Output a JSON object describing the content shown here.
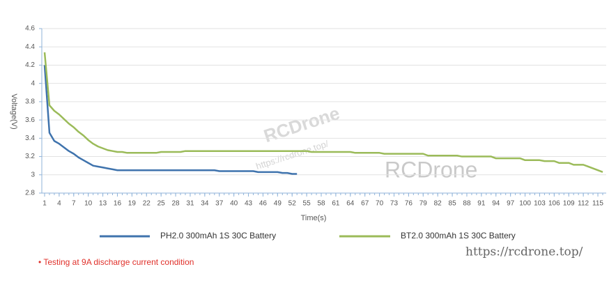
{
  "chart_data": {
    "type": "line",
    "ylabel": "Voltage(V)",
    "xlabel": "Time(s)",
    "x": [
      1,
      2,
      3,
      4,
      5,
      6,
      7,
      8,
      9,
      10,
      11,
      12,
      13,
      14,
      15,
      16,
      17,
      18,
      19,
      20,
      21,
      22,
      23,
      24,
      25,
      26,
      27,
      28,
      29,
      30,
      31,
      32,
      33,
      34,
      35,
      36,
      37,
      38,
      39,
      40,
      41,
      42,
      43,
      44,
      45,
      46,
      47,
      48,
      49,
      50,
      51,
      52,
      53,
      54,
      55,
      56,
      57,
      58,
      59,
      60,
      61,
      62,
      63,
      64,
      65,
      66,
      67,
      68,
      69,
      70,
      71,
      72,
      73,
      74,
      75,
      76,
      77,
      78,
      79,
      80,
      81,
      82,
      83,
      84,
      85,
      86,
      87,
      88,
      89,
      90,
      91,
      92,
      93,
      94,
      95,
      96,
      97,
      98,
      99,
      100,
      101,
      102,
      103,
      104,
      105,
      106,
      107,
      108,
      109,
      110,
      111,
      112,
      113,
      114,
      115,
      116
    ],
    "xlim": [
      1,
      116
    ],
    "xticks": [
      1,
      4,
      7,
      10,
      13,
      16,
      19,
      22,
      25,
      28,
      31,
      34,
      37,
      40,
      43,
      46,
      49,
      52,
      55,
      58,
      61,
      64,
      67,
      70,
      73,
      76,
      79,
      82,
      85,
      88,
      91,
      94,
      97,
      100,
      103,
      106,
      109,
      112,
      115
    ],
    "ylim": [
      2.8,
      4.6
    ],
    "yticks": [
      2.8,
      3,
      3.2,
      3.4,
      3.6,
      3.8,
      4,
      4.2,
      4.4,
      4.6
    ],
    "grid": true,
    "series": [
      {
        "name": "PH2.0 300mAh 1S 30C Battery",
        "color": "#3f73ad",
        "values": [
          4.2,
          3.46,
          3.37,
          3.34,
          3.3,
          3.26,
          3.23,
          3.19,
          3.16,
          3.13,
          3.1,
          3.09,
          3.08,
          3.07,
          3.06,
          3.05,
          3.05,
          3.05,
          3.05,
          3.05,
          3.05,
          3.05,
          3.05,
          3.05,
          3.05,
          3.05,
          3.05,
          3.05,
          3.05,
          3.05,
          3.05,
          3.05,
          3.05,
          3.05,
          3.05,
          3.05,
          3.04,
          3.04,
          3.04,
          3.04,
          3.04,
          3.04,
          3.04,
          3.04,
          3.03,
          3.03,
          3.03,
          3.03,
          3.03,
          3.02,
          3.02,
          3.01,
          3.01,
          null,
          null,
          null,
          null,
          null,
          null,
          null,
          null,
          null,
          null,
          null,
          null,
          null,
          null,
          null,
          null,
          null,
          null,
          null,
          null,
          null,
          null,
          null,
          null,
          null,
          null,
          null,
          null,
          null,
          null,
          null,
          null,
          null,
          null,
          null,
          null,
          null,
          null,
          null,
          null,
          null,
          null,
          null,
          null,
          null,
          null,
          null,
          null,
          null,
          null,
          null,
          null,
          null,
          null,
          null,
          null,
          null,
          null,
          null,
          null,
          null,
          null,
          null
        ]
      },
      {
        "name": "BT2.0 300mAh 1S 30C Battery",
        "color": "#9bbb59",
        "values": [
          4.34,
          3.76,
          3.7,
          3.66,
          3.61,
          3.56,
          3.52,
          3.47,
          3.43,
          3.38,
          3.34,
          3.31,
          3.29,
          3.27,
          3.26,
          3.25,
          3.25,
          3.24,
          3.24,
          3.24,
          3.24,
          3.24,
          3.24,
          3.24,
          3.25,
          3.25,
          3.25,
          3.25,
          3.25,
          3.26,
          3.26,
          3.26,
          3.26,
          3.26,
          3.26,
          3.26,
          3.26,
          3.26,
          3.26,
          3.26,
          3.26,
          3.26,
          3.26,
          3.26,
          3.26,
          3.26,
          3.26,
          3.26,
          3.26,
          3.26,
          3.26,
          3.26,
          3.26,
          3.26,
          3.26,
          3.25,
          3.25,
          3.25,
          3.25,
          3.25,
          3.25,
          3.25,
          3.25,
          3.25,
          3.24,
          3.24,
          3.24,
          3.24,
          3.24,
          3.24,
          3.23,
          3.23,
          3.23,
          3.23,
          3.23,
          3.23,
          3.23,
          3.23,
          3.23,
          3.21,
          3.21,
          3.21,
          3.21,
          3.21,
          3.21,
          3.21,
          3.2,
          3.2,
          3.2,
          3.2,
          3.2,
          3.2,
          3.2,
          3.18,
          3.18,
          3.18,
          3.18,
          3.18,
          3.18,
          3.16,
          3.16,
          3.16,
          3.16,
          3.15,
          3.15,
          3.15,
          3.13,
          3.13,
          3.13,
          3.11,
          3.11,
          3.11,
          3.09,
          3.07,
          3.05,
          3.03
        ]
      }
    ],
    "note": "• Testing at 9A discharge current condition",
    "watermarks": [
      "RCDrone",
      "https://rcdrone.top/",
      "RCDrone",
      "https://rcdrone.top/"
    ]
  }
}
